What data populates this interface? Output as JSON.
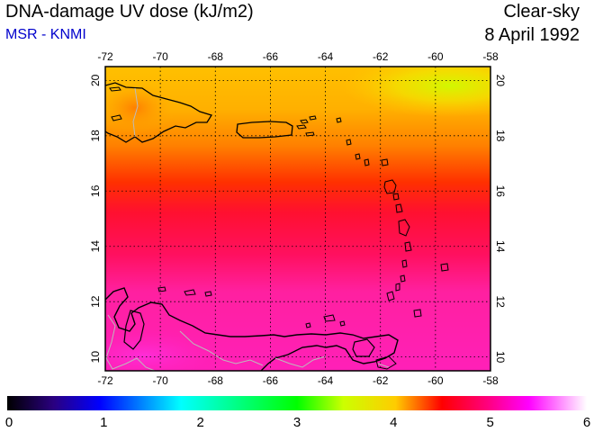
{
  "header": {
    "title": "DNA-damage UV dose (kJ/m2)",
    "source": "MSR - KNMI",
    "condition": "Clear-sky",
    "date": "8 April 1992"
  },
  "map": {
    "lon_range": [
      -72,
      -58
    ],
    "lat_range": [
      9.5,
      20.5
    ],
    "lon_ticks": [
      "-72",
      "-70",
      "-68",
      "-66",
      "-64",
      "-62",
      "-60",
      "-58"
    ],
    "lat_ticks": [
      "10",
      "12",
      "14",
      "16",
      "18",
      "20"
    ],
    "gridlines": true,
    "coastline_color": "#000000",
    "border_color": "#bbbbbb"
  },
  "colorbar": {
    "min": 0,
    "max": 6,
    "tick_labels": [
      "0",
      "1",
      "2",
      "3",
      "4",
      "5",
      "6"
    ]
  }
}
